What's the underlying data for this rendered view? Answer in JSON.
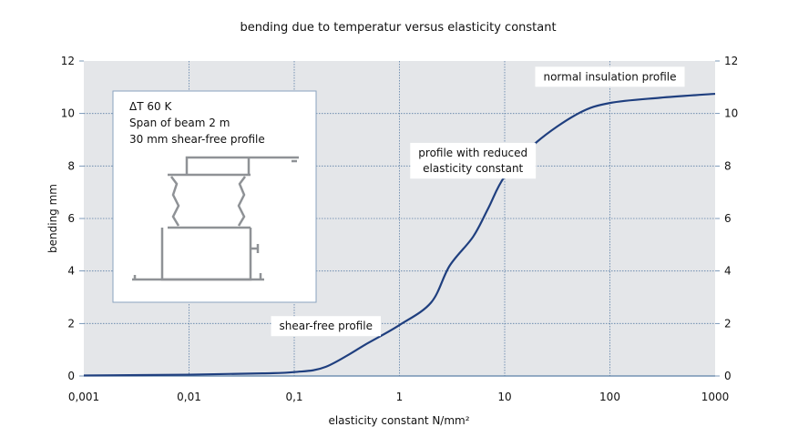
{
  "chart_data": {
    "type": "line",
    "title": "bending due to temperatur versus elasticity constant",
    "xlabel": "elasticity constant N/mm²",
    "ylabel": "bending mm",
    "xscale": "log",
    "xlim": [
      0.001,
      1000
    ],
    "ylim": [
      0,
      12
    ],
    "grid": true,
    "x_ticks": [
      "0,001",
      "0,01",
      "0,1",
      "1",
      "10",
      "100",
      "1000"
    ],
    "x_tick_values": [
      0.001,
      0.01,
      0.1,
      1,
      10,
      100,
      1000
    ],
    "y_ticks": [
      0,
      2,
      4,
      6,
      8,
      10,
      12
    ],
    "series": [
      {
        "color": "#1f3f7f",
        "x": [
          0.001,
          0.01,
          0.05,
          0.1,
          0.2,
          0.5,
          1,
          2,
          3,
          5,
          7,
          10,
          20,
          50,
          100,
          300,
          1000
        ],
        "y": [
          0.02,
          0.05,
          0.1,
          0.15,
          0.35,
          1.25,
          1.94,
          2.8,
          4.2,
          5.3,
          6.4,
          7.6,
          8.9,
          10.0,
          10.4,
          10.6,
          10.75
        ]
      }
    ],
    "annotations": [
      {
        "text": "normal insulation profile",
        "x": 100,
        "y": 11.4
      },
      {
        "text": "profile with reduced",
        "x": 5,
        "y": 8.5
      },
      {
        "text": "elasticity constant",
        "x": 5,
        "y": 7.9
      },
      {
        "text": "shear-free profile",
        "x": 0.2,
        "y": 1.9
      }
    ],
    "inset": {
      "lines": [
        "ΔT 60 K",
        "Span of beam 2 m",
        "30 mm shear-free profile"
      ]
    },
    "colors": {
      "plot_bg": "#e4e6e9",
      "grid": "#5b7fa6",
      "line": "#1f3f7f",
      "profile": "#a9abae"
    }
  }
}
